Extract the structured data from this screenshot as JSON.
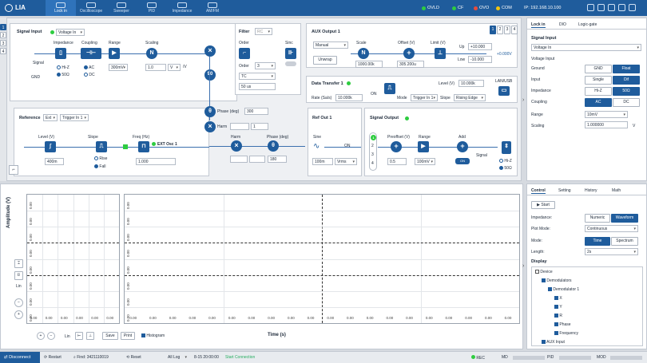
{
  "app": {
    "logo": "LIA",
    "ip_label": "IP: 192.168.10.100"
  },
  "nav": {
    "tabs": [
      "Lock in",
      "Oscilloscope",
      "Sweeper",
      "PID",
      "Impedance",
      "AM/FM"
    ],
    "active": 0
  },
  "indicators": [
    {
      "label": "OVLD",
      "color": "#2ecc40"
    },
    {
      "label": "CF",
      "color": "#2ecc40"
    },
    {
      "label": "OVO",
      "color": "#e74c3c"
    },
    {
      "label": "COM",
      "color": "#f1c40f"
    }
  ],
  "ch_tabs": [
    "1",
    "2",
    "3",
    "4"
  ],
  "signal_input": {
    "title": "Signal Input",
    "mode": "Voltage In",
    "impedance_label": "Impedance",
    "coupling_label": "Coupling",
    "range_label": "Range",
    "scaling_label": "Scaling",
    "hiz": "Hi-Z",
    "ohm50": "50Ω",
    "ac": "AC",
    "dc": "DC",
    "range_value": "300mV",
    "scaling_value": "1.0",
    "scaling_unit": "V",
    "per_v": "/V",
    "signal": "Signal",
    "gnd": "GND"
  },
  "filter": {
    "title": "Filter",
    "rc": "RC",
    "order_label": "Order",
    "sinc_label": "Sinc",
    "order_value": "3",
    "tc": "TC",
    "tc_value": "50 us",
    "off": "OFF"
  },
  "aux_output": {
    "title": "AUX Output 1",
    "mode": "Manual",
    "scale_label": "Scale",
    "offset_label": "Offset (V)",
    "limit_label": "Limit (V)",
    "unwrap": "Unwrap",
    "scale_value": "1000.00k",
    "offset_value": "305.200u",
    "up_label": "Up",
    "up_value": "+10.000",
    "low_label": "Low",
    "low_value": "-10.000",
    "out_value": "+0.000V"
  },
  "data_transfer": {
    "title": "Data Transfer 1",
    "level_label": "Level (V)",
    "level_value": "10.000k",
    "lanusb": "LAN/USB",
    "rate_label": "Rate (Sa/s)",
    "rate_value": "10.000k",
    "mode_label": "Mode",
    "mode_value": "Trigger In 1",
    "slope_label": "Slope",
    "slope_value": "Rising Edge",
    "on": "ON"
  },
  "reference": {
    "title": "Reference",
    "source": "Ext",
    "trigger": "Trigger In 1",
    "level_label": "Level (V)",
    "level_value": "400m",
    "slope_label": "Slope",
    "rise": "Rise",
    "fall": "Fall",
    "freq_label": "Freq (Hz)",
    "ext_osc": "EXT Osc 1",
    "freq_value": "1.000"
  },
  "demod": {
    "phase_label": "Phase (deg)",
    "phase_value": "300",
    "harm_label": "Harm",
    "harm_value": "1",
    "harm2_label": "Harm",
    "phase2_label": "Phase (deg)",
    "phase2_value": "180"
  },
  "ref_out": {
    "title": "Ref Out 1",
    "sine": "Sine",
    "amp_value": "100m",
    "unit": "Vrms",
    "on": "ON"
  },
  "signal_output": {
    "title": "Signal Output",
    "preoffset_label": "Preoffset (V)",
    "range_label": "Range",
    "add_label": "Add",
    "preoffset_value": "0.5",
    "range_value": "100mV",
    "on": "ON",
    "signal": "Signal",
    "hiz": "Hi-Z",
    "ohm50": "50Ω"
  },
  "right_top": {
    "tabs": [
      "Lock in",
      "DIO",
      "Logic-gate"
    ],
    "section": "Signal Input",
    "mode": "Voltage In",
    "voltage_input": "Voltage Input",
    "rows": [
      {
        "label": "Ground",
        "a": "GND",
        "b": "Float",
        "sel": "b"
      },
      {
        "label": "Input",
        "a": "Single",
        "b": "Dif",
        "sel": "b"
      },
      {
        "label": "Impedance",
        "a": "Hi-Z",
        "b": "50Ω",
        "sel": "b"
      },
      {
        "label": "Coupling",
        "a": "AC",
        "b": "DC",
        "sel": "a"
      }
    ],
    "range_label": "Range",
    "range_value": "10mV",
    "scaling_label": "Scaling",
    "scaling_value": "1.000000",
    "scaling_unit": "V"
  },
  "plot": {
    "ylabel": "Amplitude (V)",
    "xlabel": "Time (s)",
    "y_ticks": [
      "0.00",
      "0.00",
      "0.00",
      "0.00",
      "0.00",
      "0.00",
      "0.00",
      "0.00"
    ],
    "x_ticks_left": [
      "0.00",
      "0.00",
      "0.00",
      "0.00",
      "0.00",
      "0.00"
    ],
    "x_ticks_right": [
      "0.00",
      "0.00",
      "0.00",
      "0.00",
      "0.00",
      "0.00",
      "0.00",
      "0.00",
      "0.00",
      "0.00",
      "0.00",
      "0.00",
      "0.00",
      "0.00",
      "0.00",
      "0.00",
      "0.00",
      "0.00",
      "0.00",
      "0.00"
    ],
    "lin": "Lin",
    "save": "Save",
    "print": "Print",
    "histogram": "Histogram"
  },
  "right_bottom": {
    "tabs": [
      "Control",
      "Setting",
      "History",
      "Math"
    ],
    "start": "Start",
    "impedance_label": "Impedance:",
    "numeric": "Numeric",
    "waveform": "Waveform",
    "plotmode_label": "Plot Mode:",
    "plotmode_value": "Continuous",
    "mode_label": "Mode:",
    "time": "Time",
    "spectrum": "Spectrum",
    "length_label": "Length:",
    "length_value": "2s",
    "display": "Display",
    "tree": [
      {
        "label": "Device",
        "level": 0,
        "checked": false
      },
      {
        "label": "Demodulators",
        "level": 1,
        "checked": true
      },
      {
        "label": "Demodulator 1",
        "level": 2,
        "checked": true
      },
      {
        "label": "X",
        "level": 3,
        "checked": true
      },
      {
        "label": "Y",
        "level": 3,
        "checked": true
      },
      {
        "label": "R",
        "level": 3,
        "checked": true
      },
      {
        "label": "Phase",
        "level": 3,
        "checked": true
      },
      {
        "label": "Frequency",
        "level": 3,
        "checked": true
      },
      {
        "label": "AUX Input",
        "level": 1,
        "checked": true
      }
    ]
  },
  "status": {
    "disconnect": "Disconnect",
    "restart": "Restart",
    "find": "Find: 3421110019",
    "reset": "Reset",
    "all_log": "All Log",
    "log_msg_time": "8-15 20:00:00",
    "log_msg": "Start Connection",
    "rec": "REC",
    "md": "MD",
    "pid": "PID",
    "mod": "MOD"
  }
}
